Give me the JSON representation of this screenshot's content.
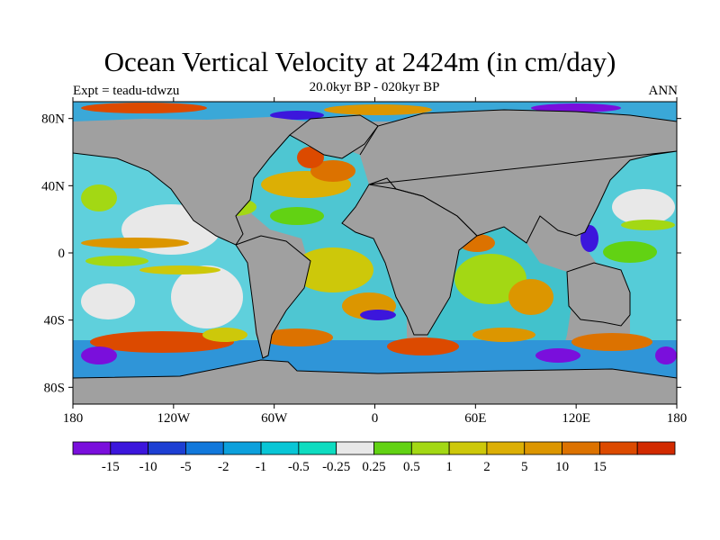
{
  "title": "Ocean Vertical Velocity at 2424m (in cm/day)",
  "expt_label": "Expt = teadu-tdwzu",
  "period_label": "20.0kyr BP - 020kyr BP",
  "season_label": "ANN",
  "map": {
    "lat_labels": [
      "80N",
      "40N",
      "0",
      "40S",
      "80S"
    ],
    "lon_labels": [
      "180",
      "120W",
      "60W",
      "0",
      "60E",
      "120E",
      "180"
    ],
    "lon_range": [
      -180,
      180
    ],
    "lat_range": [
      -90,
      90
    ],
    "land_color": "#a0a0a0",
    "outline_color": "#000000"
  },
  "colorbar": {
    "colors": [
      "#7a0fdc",
      "#3c16dc",
      "#1d3fd3",
      "#1178db",
      "#0ca0dc",
      "#08c6d6",
      "#0edcc0",
      "#e8e8e8",
      "#62d213",
      "#a3d814",
      "#cdc80a",
      "#dcaf05",
      "#dc9600",
      "#dc7200",
      "#dc4a00",
      "#d22a00"
    ],
    "labels": [
      "-15",
      "-10",
      "-5",
      "-2",
      "-1",
      "-0.5",
      "-0.25",
      "0.25",
      "0.5",
      "1",
      "2",
      "5",
      "10",
      "15"
    ]
  }
}
